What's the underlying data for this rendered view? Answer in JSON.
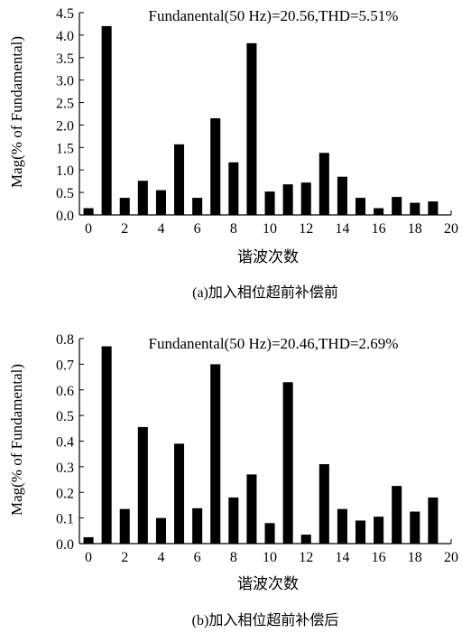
{
  "chart_data": [
    {
      "type": "bar",
      "title": "Fundanental(50 Hz)=20.56,THD=5.51%",
      "xlabel": "谐波次数",
      "ylabel": "Mag(% of Fundamental)",
      "caption": "(a)加入相位超前补偿前",
      "x": [
        0,
        1,
        2,
        3,
        4,
        5,
        6,
        7,
        8,
        9,
        10,
        11,
        12,
        13,
        14,
        15,
        16,
        17,
        18,
        19
      ],
      "values": [
        0.15,
        4.2,
        0.38,
        0.76,
        0.55,
        1.57,
        0.38,
        2.15,
        1.17,
        3.82,
        0.52,
        0.68,
        0.72,
        1.38,
        0.85,
        0.38,
        0.15,
        0.4,
        0.27,
        0.3
      ],
      "xlim": [
        -0.5,
        20
      ],
      "ylim": [
        0,
        4.5
      ],
      "xticks": [
        "0",
        "2",
        "4",
        "6",
        "8",
        "10",
        "12",
        "14",
        "16",
        "18",
        "20"
      ],
      "yticks": [
        "0.0",
        "0.5",
        "1.0",
        "1.5",
        "2.0",
        "2.5",
        "3.0",
        "3.5",
        "4.0",
        "4.5"
      ],
      "grid": false
    },
    {
      "type": "bar",
      "title": "Fundanental(50 Hz)=20.46,THD=2.69%",
      "xlabel": "谐波次数",
      "ylabel": "Mag(% of Fundamental)",
      "caption": "(b)加入相位超前补偿后",
      "x": [
        0,
        1,
        2,
        3,
        4,
        5,
        6,
        7,
        8,
        9,
        10,
        11,
        12,
        13,
        14,
        15,
        16,
        17,
        18,
        19
      ],
      "values": [
        0.025,
        0.77,
        0.135,
        0.455,
        0.1,
        0.39,
        0.138,
        0.7,
        0.18,
        0.27,
        0.08,
        0.63,
        0.035,
        0.31,
        0.135,
        0.09,
        0.105,
        0.225,
        0.125,
        0.18
      ],
      "xlim": [
        -0.5,
        20
      ],
      "ylim": [
        0,
        0.8
      ],
      "xticks": [
        "0",
        "2",
        "4",
        "6",
        "8",
        "10",
        "12",
        "14",
        "16",
        "18",
        "20"
      ],
      "yticks": [
        "0.0",
        "0.1",
        "0.2",
        "0.3",
        "0.4",
        "0.5",
        "0.6",
        "0.7",
        "0.8"
      ],
      "grid": false
    }
  ],
  "colors": {
    "bar": "#000000",
    "axis": "#000000"
  }
}
